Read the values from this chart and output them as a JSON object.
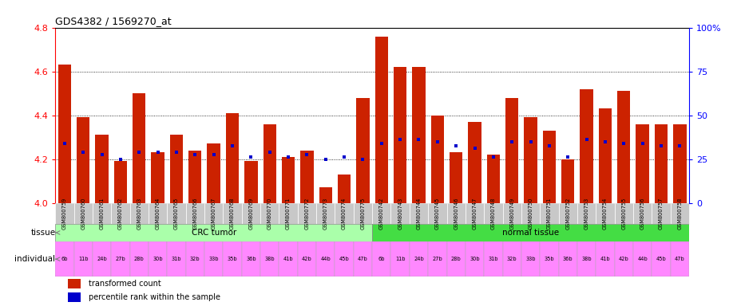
{
  "title": "GDS4382 / 1569270_at",
  "gsm_labels": [
    "GSM800759",
    "GSM800760",
    "GSM800761",
    "GSM800762",
    "GSM800763",
    "GSM800764",
    "GSM800765",
    "GSM800766",
    "GSM800767",
    "GSM800768",
    "GSM800769",
    "GSM800770",
    "GSM800771",
    "GSM800772",
    "GSM800773",
    "GSM800774",
    "GSM800775",
    "GSM800742",
    "GSM800743",
    "GSM800744",
    "GSM800745",
    "GSM800746",
    "GSM800747",
    "GSM800748",
    "GSM800749",
    "GSM800750",
    "GSM800751",
    "GSM800752",
    "GSM800753",
    "GSM800754",
    "GSM800755",
    "GSM800756",
    "GSM800757",
    "GSM800758"
  ],
  "bar_values": [
    4.63,
    4.39,
    4.31,
    4.19,
    4.5,
    4.23,
    4.31,
    4.24,
    4.27,
    4.41,
    4.19,
    4.36,
    4.21,
    4.24,
    4.07,
    4.13,
    4.48,
    4.76,
    4.62,
    4.62,
    4.4,
    4.23,
    4.37,
    4.22,
    4.48,
    4.39,
    4.33,
    4.2,
    4.52,
    4.43,
    4.51,
    4.36,
    4.36,
    4.36
  ],
  "percentile_values": [
    4.27,
    4.23,
    4.22,
    4.2,
    4.23,
    4.23,
    4.23,
    4.22,
    4.22,
    4.26,
    4.21,
    4.23,
    4.21,
    4.22,
    4.2,
    4.21,
    4.2,
    4.27,
    4.29,
    4.29,
    4.28,
    4.26,
    4.25,
    4.21,
    4.28,
    4.28,
    4.26,
    4.21,
    4.29,
    4.28,
    4.27,
    4.27,
    4.26,
    4.26
  ],
  "ylim": [
    4.0,
    4.8
  ],
  "yticks_left": [
    4.0,
    4.2,
    4.4,
    4.6,
    4.8
  ],
  "yticks_right": [
    0,
    25,
    50,
    75,
    100
  ],
  "ytick_right_labels": [
    "0",
    "25",
    "50",
    "75",
    "100%"
  ],
  "bar_color": "#CC2200",
  "dot_color": "#0000CC",
  "n_crc": 17,
  "tissue_crc_label": "CRC tumor",
  "tissue_normal_label": "normal tissue",
  "tissue_crc_color": "#AAFFAA",
  "tissue_normal_color": "#44DD44",
  "individual_labels": [
    "6b",
    "11b",
    "24b",
    "27b",
    "28b",
    "30b",
    "31b",
    "32b",
    "33b",
    "35b",
    "36b",
    "38b",
    "41b",
    "42b",
    "44b",
    "45b",
    "47b",
    "6b",
    "11b",
    "24b",
    "27b",
    "28b",
    "30b",
    "31b",
    "32b",
    "33b",
    "35b",
    "36b",
    "38b",
    "41b",
    "42b",
    "44b",
    "45b",
    "47b"
  ],
  "individual_bg_crc": "#FF88FF",
  "individual_bg_normal": "#FF88FF",
  "xtick_bg": "#C8C8C8",
  "legend_red_label": "transformed count",
  "legend_blue_label": "percentile rank within the sample",
  "grid_dotted_color": "black",
  "left_label_color": "gray",
  "arrow_color": "gray"
}
